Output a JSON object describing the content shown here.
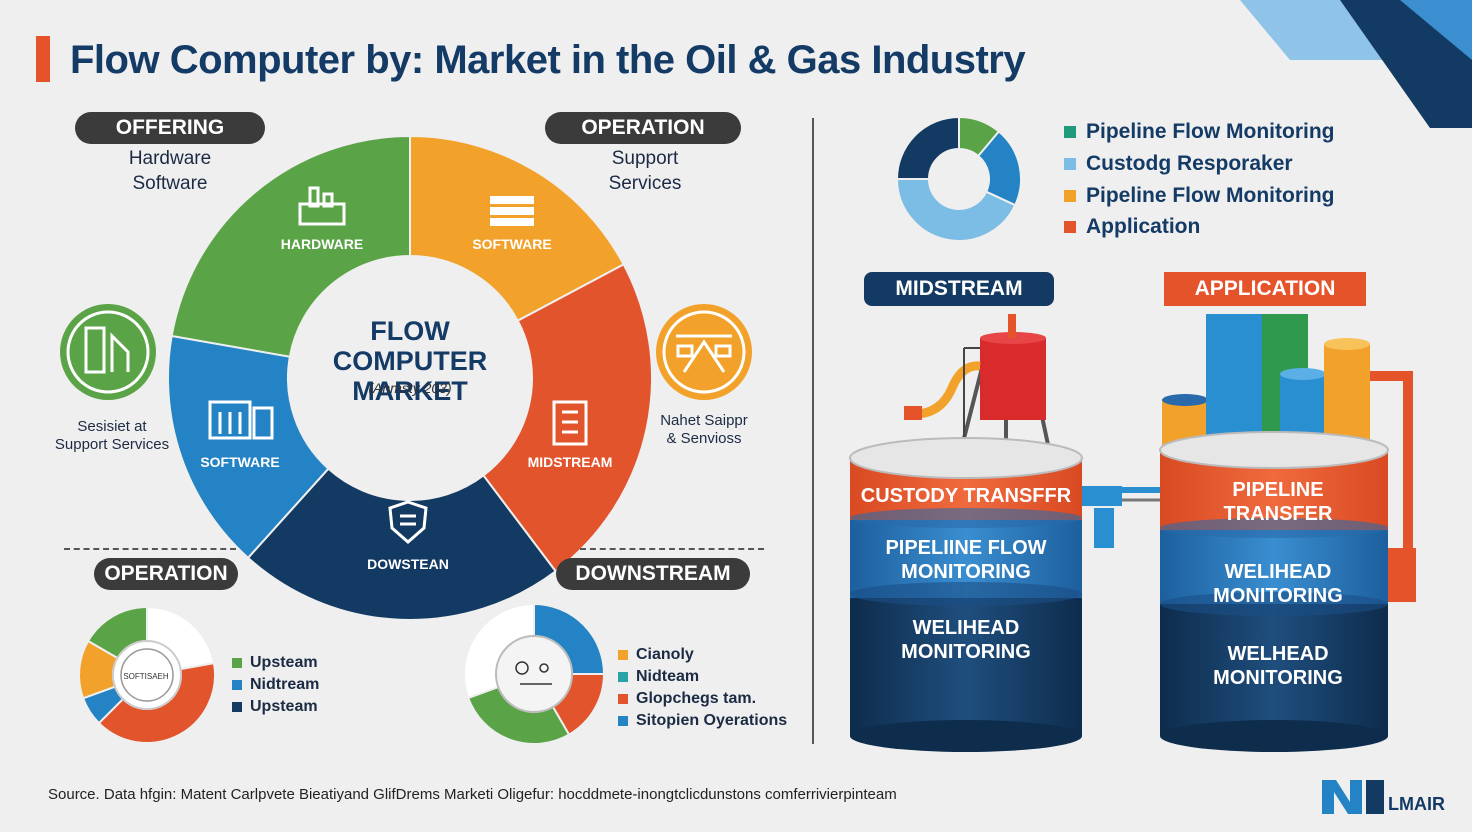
{
  "title": "Flow Computer by: Market in the Oil & Gas Industry",
  "offering": {
    "pill": "OFFERING",
    "items": [
      "Hardware",
      "Software"
    ]
  },
  "operation_top": {
    "pill": "OPERATION",
    "items": [
      "Support",
      "Services"
    ]
  },
  "donut": {
    "center_title": "FLOW COMPUTER MARKET",
    "center_sub": "(Anmsty 203)",
    "segments": [
      {
        "label": "HARDWARE",
        "color": "#5aa447"
      },
      {
        "label": "SOFTWARE",
        "color": "#f2a22a"
      },
      {
        "label": "MIDSTREAM",
        "color": "#e2542c"
      },
      {
        "label": "DOWSTEAN",
        "color": "#133a62"
      },
      {
        "label": "SOFTWARE",
        "color": "#2383c5"
      }
    ]
  },
  "left_icon_caption": [
    "Sesisiet at",
    "Support Services"
  ],
  "right_icon_caption": [
    "Nahet Saippr",
    "& Senvioss"
  ],
  "operation_bottom": {
    "pill": "OPERATION",
    "center_text": "SOFTISAEH",
    "legend": [
      {
        "label": "Upsteam",
        "color": "#5aa447"
      },
      {
        "label": "Nidtream",
        "color": "#2383c5"
      },
      {
        "label": "Upsteam",
        "color": "#133a62"
      }
    ]
  },
  "downstream": {
    "pill": "DOWNSTREAM",
    "legend": [
      {
        "label": "Cianoly",
        "color": "#f2a22a"
      },
      {
        "label": "Nidteam",
        "color": "#2aa3a8"
      },
      {
        "label": "Glopchegs tam.",
        "color": "#e2542c"
      },
      {
        "label": "Sitopien Oyerations",
        "color": "#2383c5"
      }
    ]
  },
  "right_legend": [
    {
      "label": "Pipeline Flow Monitoring",
      "color": "#1f9a7a"
    },
    {
      "label": "Custodg Resporaker",
      "color": "#7cbde6"
    },
    {
      "label": "Pipeline Flow Monitoring",
      "color": "#f2a22a"
    },
    {
      "label": "Application",
      "color": "#e2542c"
    }
  ],
  "midstream": {
    "pill": "MIDSTREAM",
    "bands": [
      "CUSTODY TRANSFFR",
      "PIPELIINE FLOW MONITORING",
      "WELIHEAD MONITORING"
    ]
  },
  "application": {
    "pill": "APPLICATION",
    "bands": [
      "PIPELINE TRANSFER",
      "WELIHEAD MONITORING",
      "WELHEAD MONITORING"
    ]
  },
  "source": "Source. Data hfgin: Matent Carlpvete Bieatiyand GlifDrems Marketi Oligefur: hocddmete-inongtclicdunstons comferrivierpinteam",
  "logo": "LMAIR",
  "colors": {
    "navy": "#133a62",
    "blue": "#2383c5",
    "orange": "#e2542c",
    "amber": "#f2a22a",
    "green": "#5aa447"
  }
}
